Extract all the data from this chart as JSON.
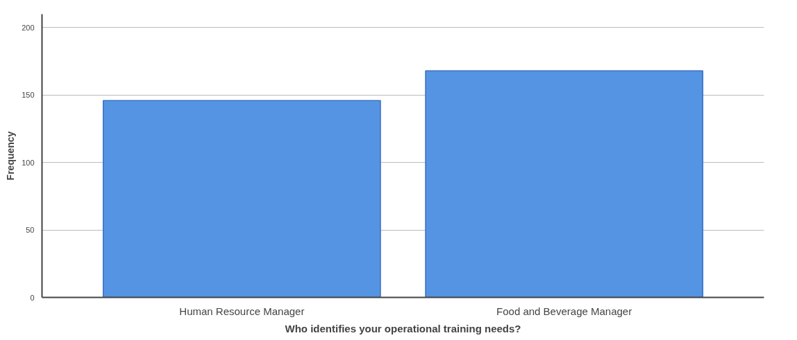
{
  "chart_data": {
    "type": "bar",
    "xlabel": "Who identifies your operational training needs?",
    "ylabel": "Frequency",
    "categories": [
      "Human Resource Manager",
      "Food and Beverage Manager"
    ],
    "values": [
      146,
      168
    ],
    "color": "#5494e3",
    "ylim": [
      0,
      210
    ],
    "yticks": [
      0,
      50,
      100,
      150,
      200
    ],
    "grid": "y"
  }
}
